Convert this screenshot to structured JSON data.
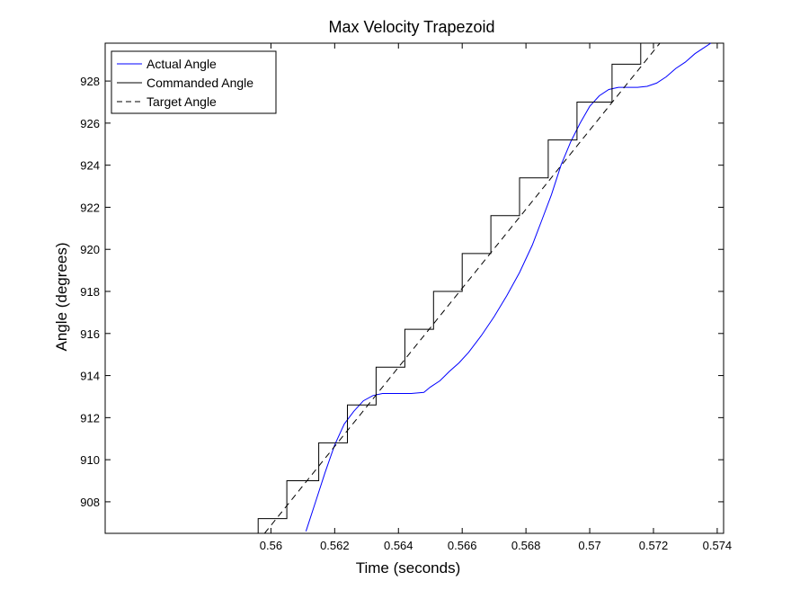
{
  "chart_data": {
    "type": "line",
    "title": "Max Velocity Trapezoid",
    "xlabel": "Time (seconds)",
    "ylabel": "Angle (degrees)",
    "xlim": [
      0.5548,
      0.5742
    ],
    "ylim": [
      906.5,
      929.8
    ],
    "xticks": [
      0.56,
      0.562,
      0.564,
      0.566,
      0.568,
      0.57,
      0.572,
      0.574
    ],
    "xtick_labels": [
      "0.56",
      "0.562",
      "0.564",
      "0.566",
      "0.568",
      "0.57",
      "0.572",
      "0.574"
    ],
    "yticks": [
      908,
      910,
      912,
      914,
      916,
      918,
      920,
      922,
      924,
      926,
      928
    ],
    "ytick_labels": [
      "908",
      "910",
      "912",
      "914",
      "916",
      "918",
      "920",
      "922",
      "924",
      "926",
      "928"
    ],
    "grid": false,
    "legend_position": "top-left",
    "series": [
      {
        "name": "Actual Angle",
        "color": "#0000ff",
        "style": "solid",
        "x": [
          0.5611,
          0.5614,
          0.5617,
          0.562,
          0.5623,
          0.5626,
          0.5629,
          0.5632,
          0.5635,
          0.564,
          0.5644,
          0.5648,
          0.565,
          0.5653,
          0.5656,
          0.5659,
          0.5662,
          0.5666,
          0.567,
          0.5674,
          0.5678,
          0.5682,
          0.5685,
          0.5688,
          0.5691,
          0.5694,
          0.5697,
          0.57,
          0.5703,
          0.5706,
          0.5709,
          0.5712,
          0.5715,
          0.5718,
          0.5721,
          0.5724,
          0.5727,
          0.573,
          0.5733,
          0.5736,
          0.5738
        ],
        "y": [
          906.6,
          908.0,
          909.4,
          910.7,
          911.7,
          912.3,
          912.8,
          913.05,
          913.15,
          913.15,
          913.15,
          913.2,
          913.45,
          913.75,
          914.2,
          914.6,
          915.1,
          915.9,
          916.8,
          917.8,
          918.9,
          920.2,
          921.4,
          922.6,
          924.0,
          925.1,
          926.0,
          926.8,
          927.3,
          927.6,
          927.7,
          927.7,
          927.7,
          927.75,
          927.9,
          928.2,
          928.6,
          928.9,
          929.3,
          929.6,
          929.8
        ]
      },
      {
        "name": "Commanded Angle",
        "color": "#000000",
        "style": "solid",
        "x": [
          0.5596,
          0.5596,
          0.5605,
          0.5605,
          0.5615,
          0.5615,
          0.5624,
          0.5624,
          0.5633,
          0.5633,
          0.5642,
          0.5642,
          0.5651,
          0.5651,
          0.566,
          0.566,
          0.5669,
          0.5669,
          0.5678,
          0.5678,
          0.5687,
          0.5687,
          0.5696,
          0.5696,
          0.5707,
          0.5707,
          0.5716,
          0.5716
        ],
        "y": [
          906.5,
          907.2,
          907.2,
          909.0,
          909.0,
          910.8,
          910.8,
          912.6,
          912.6,
          914.4,
          914.4,
          916.2,
          916.2,
          918.0,
          918.0,
          919.8,
          919.8,
          921.6,
          921.6,
          923.4,
          923.4,
          925.2,
          925.2,
          927.0,
          927.0,
          928.8,
          928.8,
          929.8
        ]
      },
      {
        "name": "Target Angle",
        "color": "#000000",
        "style": "dashed",
        "x": [
          0.5598,
          0.5722
        ],
        "y": [
          906.5,
          929.8
        ]
      }
    ]
  }
}
